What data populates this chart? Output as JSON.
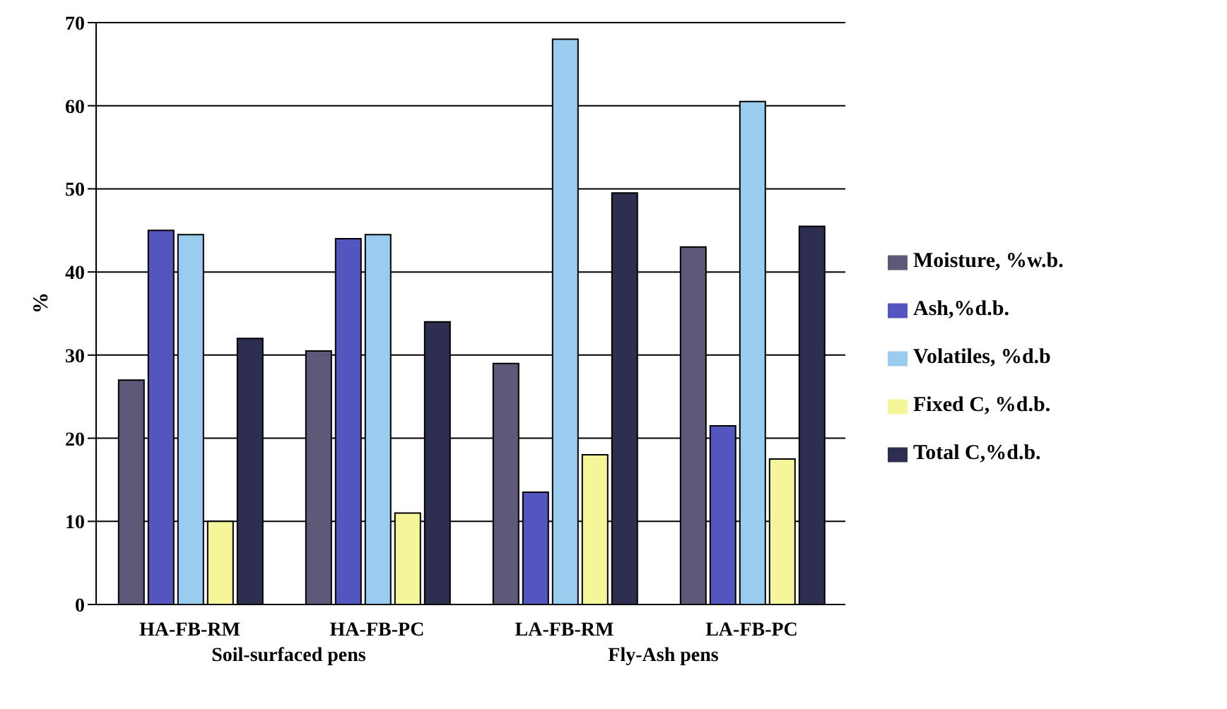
{
  "chart_data": {
    "type": "bar",
    "ylabel": "%",
    "categories": [
      "HA-FB-RM",
      "HA-FB-PC",
      "LA-FB-RM",
      "LA-FB-PC"
    ],
    "series": [
      {
        "name": "Moisture, %w.b.",
        "color": "#5f5878",
        "values": [
          27,
          30.5,
          29,
          43
        ]
      },
      {
        "name": "Ash,%d.b.",
        "color": "#5555c0",
        "values": [
          45,
          44,
          13.5,
          21.5
        ]
      },
      {
        "name": "Volatiles, %d.b",
        "color": "#99ccee",
        "values": [
          44.5,
          44.5,
          68,
          60.5
        ]
      },
      {
        "name": "Fixed C, %d.b.",
        "color": "#f5f59a",
        "values": [
          10,
          11,
          18,
          17.5
        ]
      },
      {
        "name": "Total C,%d.b.",
        "color": "#2e2e50",
        "values": [
          32,
          34,
          49.5,
          45.5
        ]
      }
    ],
    "annotations": [
      "Soil-surfaced pens",
      "Fly-Ash pens"
    ],
    "ylim": [
      0,
      70
    ],
    "yticks": [
      0,
      10,
      20,
      30,
      40,
      50,
      60,
      70
    ],
    "grid": "y",
    "legend": "right"
  }
}
